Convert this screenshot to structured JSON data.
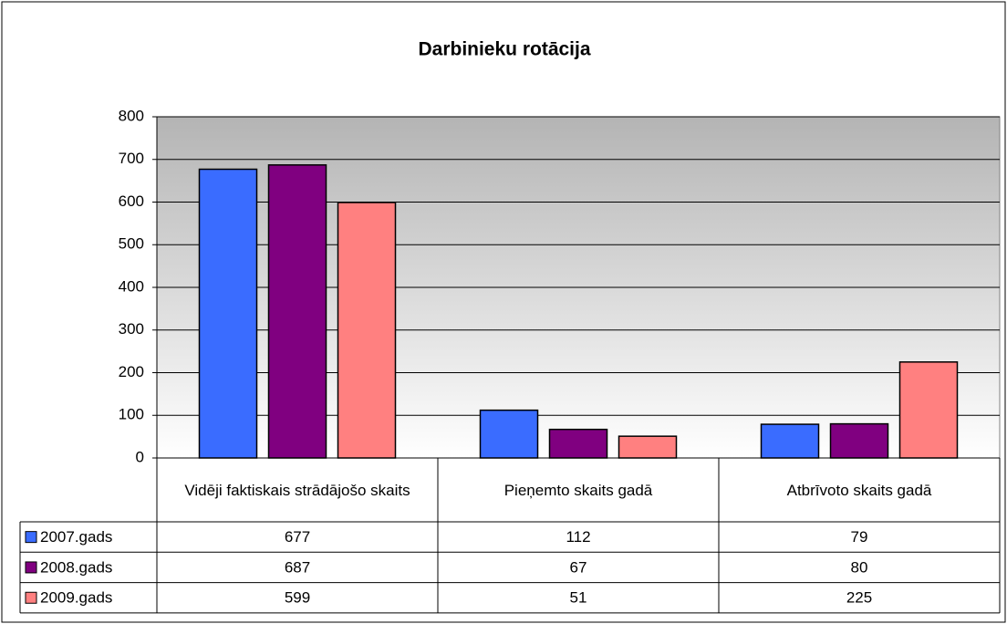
{
  "chart_data": {
    "type": "bar",
    "title": "Darbinieku rotācija",
    "categories": [
      "Vidēji faktiskais strādājošo skaits",
      "Pieņemto skaits gadā",
      "Atbrīvoto skaits gadā"
    ],
    "series": [
      {
        "name": "2007.gads",
        "color": "#3a6cff",
        "values": [
          677,
          112,
          79
        ]
      },
      {
        "name": "2008.gads",
        "color": "#800080",
        "values": [
          687,
          67,
          80
        ]
      },
      {
        "name": "2009.gads",
        "color": "#ff8080",
        "values": [
          599,
          51,
          225
        ]
      }
    ],
    "ylim": [
      0,
      800
    ],
    "yticks": [
      0,
      100,
      200,
      300,
      400,
      500,
      600,
      700,
      800
    ],
    "grid": true
  }
}
